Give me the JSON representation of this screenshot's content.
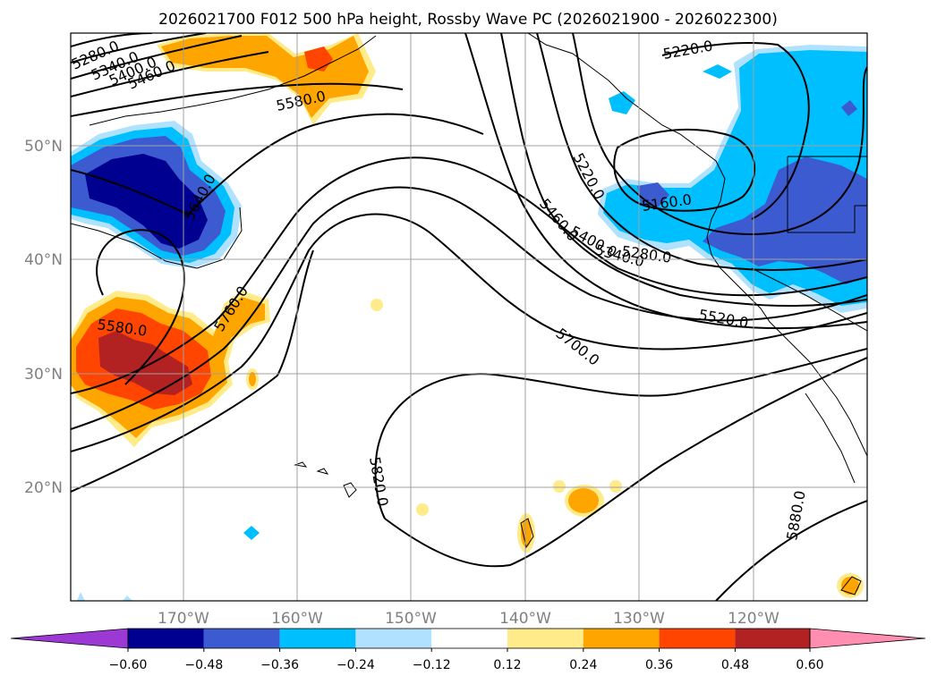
{
  "title": "2026021700 F012 500 hPa height, Rossby Wave PC (2026021900 - 2026022300)",
  "lat_labels": [
    "50°N",
    "40°N",
    "30°N",
    "20°N"
  ],
  "lon_labels": [
    "170°W",
    "160°W",
    "150°W",
    "140°W",
    "130°W",
    "120°W"
  ],
  "colorbar": {
    "tick_labels": [
      "−0.60",
      "−0.48",
      "−0.36",
      "−0.24",
      "−0.12",
      "0.12",
      "0.24",
      "0.36",
      "0.48",
      "0.60"
    ],
    "colors": [
      "#9c38d4",
      "#000090",
      "#3c5bd0",
      "#00bfff",
      "#b0e2ff",
      "#ffffff",
      "#ffeb8a",
      "#ffa500",
      "#ff4500",
      "#b22222",
      "#ff8eb0"
    ]
  },
  "contour_labels": [
    "5280.0",
    "5340.0",
    "5400.0",
    "5460.0",
    "5580.0",
    "5220.0",
    "5640.0",
    "5220.0",
    "5160.0",
    "5460.0",
    "5400.0",
    "5340.0",
    "5280.0",
    "5580.0",
    "5760.0",
    "5520.0",
    "5700.0",
    "5820.0",
    "5880.0"
  ]
}
